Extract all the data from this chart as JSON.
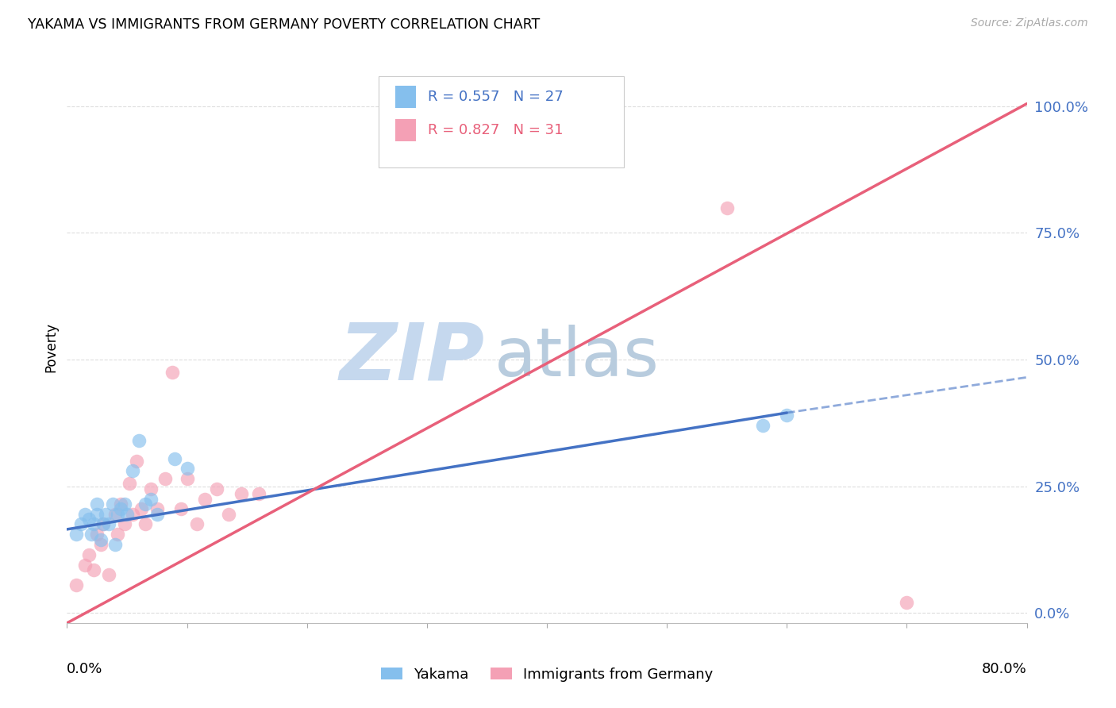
{
  "title": "YAKAMA VS IMMIGRANTS FROM GERMANY POVERTY CORRELATION CHART",
  "source": "Source: ZipAtlas.com",
  "ylabel": "Poverty",
  "ytick_labels": [
    "0.0%",
    "25.0%",
    "50.0%",
    "75.0%",
    "100.0%"
  ],
  "ytick_values": [
    0.0,
    0.25,
    0.5,
    0.75,
    1.0
  ],
  "xlim": [
    0.0,
    0.8
  ],
  "ylim": [
    -0.02,
    1.07
  ],
  "legend_label1": "Yakama",
  "legend_label2": "Immigrants from Germany",
  "R1": "0.557",
  "N1": "27",
  "R2": "0.827",
  "N2": "31",
  "color_blue": "#85BFED",
  "color_pink": "#F4A0B5",
  "line_color_blue": "#4472C4",
  "line_color_pink": "#E8607A",
  "watermark_zip": "ZIP",
  "watermark_atlas": "atlas",
  "watermark_color_zip": "#C5D8EE",
  "watermark_color_atlas": "#B8CCDE",
  "background_color": "#FFFFFF",
  "grid_color": "#DDDDDD",
  "yakama_x": [
    0.008,
    0.012,
    0.015,
    0.018,
    0.02,
    0.022,
    0.025,
    0.025,
    0.028,
    0.03,
    0.032,
    0.035,
    0.038,
    0.04,
    0.042,
    0.045,
    0.048,
    0.05,
    0.055,
    0.06,
    0.065,
    0.07,
    0.075,
    0.09,
    0.1,
    0.58,
    0.6
  ],
  "yakama_y": [
    0.155,
    0.175,
    0.195,
    0.185,
    0.155,
    0.175,
    0.195,
    0.215,
    0.145,
    0.175,
    0.195,
    0.175,
    0.215,
    0.135,
    0.195,
    0.205,
    0.215,
    0.195,
    0.28,
    0.34,
    0.215,
    0.225,
    0.195,
    0.305,
    0.285,
    0.37,
    0.39
  ],
  "germany_x": [
    0.008,
    0.015,
    0.018,
    0.022,
    0.025,
    0.028,
    0.03,
    0.035,
    0.04,
    0.042,
    0.045,
    0.048,
    0.052,
    0.055,
    0.058,
    0.062,
    0.065,
    0.07,
    0.075,
    0.082,
    0.088,
    0.095,
    0.1,
    0.108,
    0.115,
    0.125,
    0.135,
    0.145,
    0.16,
    0.55,
    0.7
  ],
  "germany_y": [
    0.055,
    0.095,
    0.115,
    0.085,
    0.155,
    0.135,
    0.175,
    0.075,
    0.195,
    0.155,
    0.215,
    0.175,
    0.255,
    0.195,
    0.3,
    0.205,
    0.175,
    0.245,
    0.205,
    0.265,
    0.475,
    0.205,
    0.265,
    0.175,
    0.225,
    0.245,
    0.195,
    0.235,
    0.235,
    0.8,
    0.02
  ],
  "blue_line_x0": 0.0,
  "blue_line_y0": 0.165,
  "blue_line_x1": 0.6,
  "blue_line_y1": 0.395,
  "blue_line_xdash": 0.8,
  "blue_line_ydash": 0.465,
  "pink_line_x0": 0.0,
  "pink_line_y0": -0.02,
  "pink_line_x1": 0.8,
  "pink_line_y1": 1.005
}
